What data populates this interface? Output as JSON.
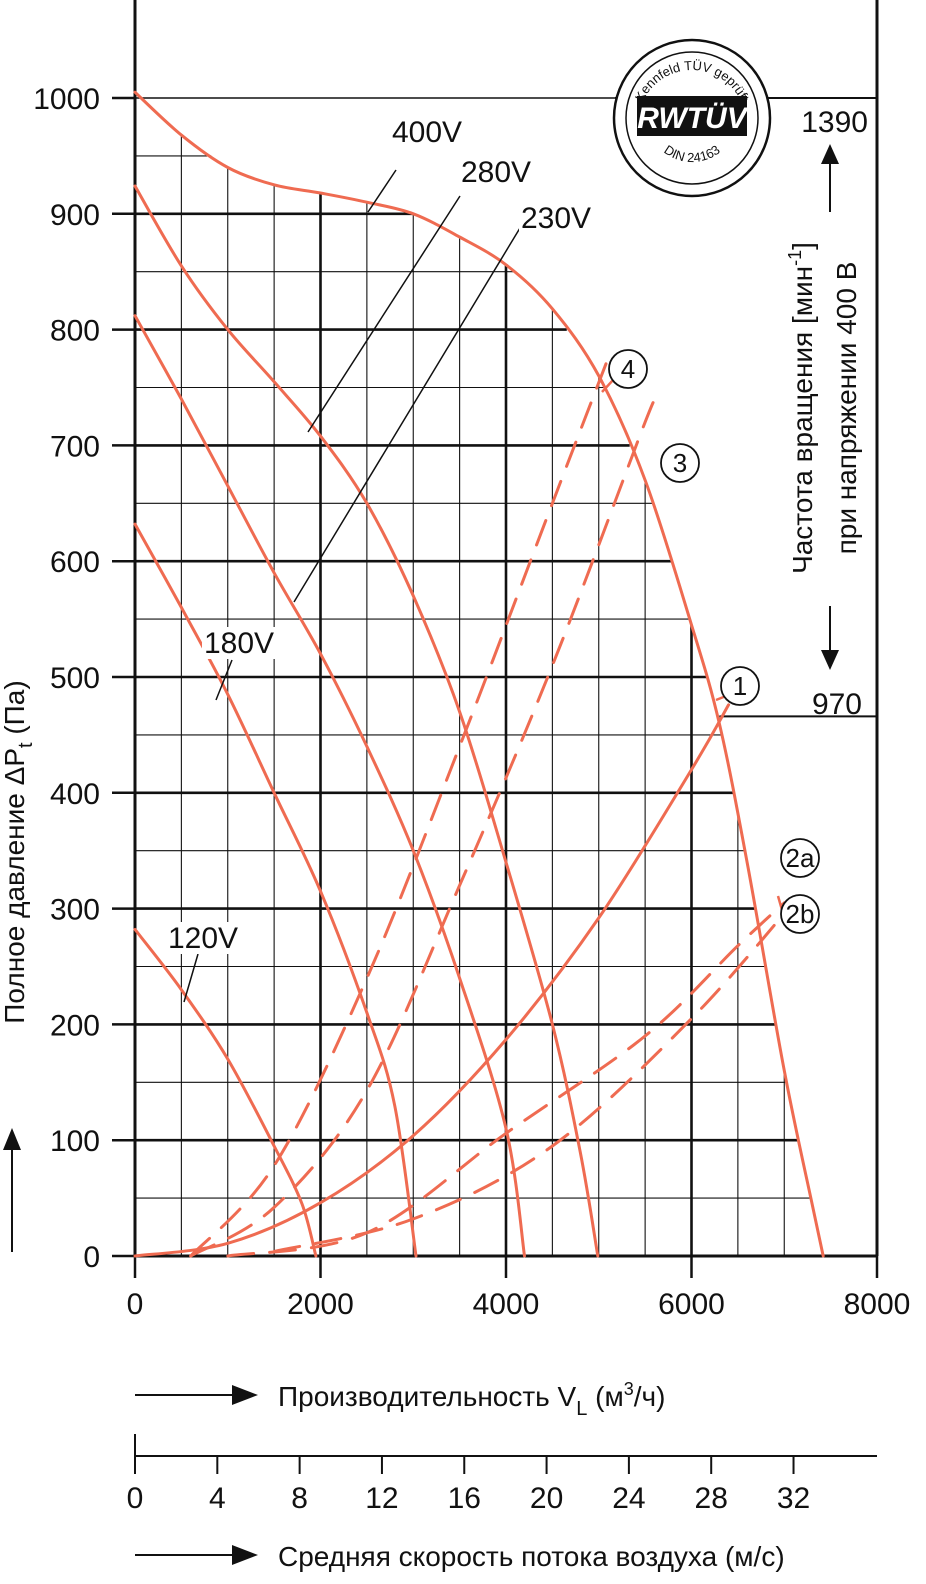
{
  "chart_data": {
    "type": "line",
    "title": "",
    "xlabel": "Производительность V",
    "xlabel_sub": "L",
    "xlabel_unit_pre": " (м",
    "xlabel_unit_sup": "3",
    "xlabel_unit_post": "/ч)",
    "ylabel": "Полное давление ΔP",
    "ylabel_sub": "t",
    "ylabel_unit": " (Па)",
    "velocity_label": "Средняя скорость потока воздуха (м/с)",
    "xlim": [
      0,
      8000
    ],
    "ylim": [
      0,
      1000
    ],
    "grid": true,
    "x_ticks": [
      "0",
      "2000",
      "4000",
      "6000",
      "8000"
    ],
    "y_ticks": [
      "0",
      "100",
      "200",
      "300",
      "400",
      "500",
      "600",
      "700",
      "800",
      "900",
      "1000"
    ],
    "velocity_ticks": [
      "0",
      "4",
      "8",
      "12",
      "16",
      "20",
      "24",
      "28",
      "32"
    ],
    "speed_axis": {
      "label_line1_pre": "Частота вращения [мин",
      "label_line1_sup": "-1",
      "label_line1_post": "]",
      "label_line2": "при напряжении 400 В",
      "top_value": "1390",
      "bottom_value": "970",
      "top_pressure": 1000,
      "bottom_pressure": 466
    },
    "badge": {
      "top_text": "Kennfeld TÜV geprüft",
      "brand": "RWTÜV",
      "bottom_text": "DIN 24163"
    },
    "color_curve": "#ef6b51",
    "color_grid": "#111111",
    "series": [
      {
        "name": "400V",
        "label": "400V",
        "style": "solid",
        "points": [
          [
            0,
            1005
          ],
          [
            500,
            968
          ],
          [
            1000,
            940
          ],
          [
            1500,
            925
          ],
          [
            2000,
            918
          ],
          [
            2500,
            910
          ],
          [
            3000,
            900
          ],
          [
            3500,
            880
          ],
          [
            4000,
            856
          ],
          [
            4500,
            818
          ],
          [
            5000,
            760
          ],
          [
            5500,
            670
          ],
          [
            6000,
            545
          ],
          [
            6300,
            460
          ],
          [
            6600,
            340
          ],
          [
            7000,
            160
          ],
          [
            7300,
            45
          ],
          [
            7420,
            0
          ]
        ]
      },
      {
        "name": "280V",
        "label": "280V",
        "style": "solid",
        "points": [
          [
            0,
            924
          ],
          [
            500,
            855
          ],
          [
            1000,
            800
          ],
          [
            1500,
            755
          ],
          [
            2000,
            708
          ],
          [
            2500,
            650
          ],
          [
            3000,
            570
          ],
          [
            3500,
            470
          ],
          [
            4000,
            340
          ],
          [
            4500,
            200
          ],
          [
            4800,
            90
          ],
          [
            4990,
            0
          ]
        ]
      },
      {
        "name": "230V",
        "label": "230V",
        "style": "solid",
        "points": [
          [
            0,
            812
          ],
          [
            500,
            740
          ],
          [
            1000,
            665
          ],
          [
            1500,
            590
          ],
          [
            2000,
            520
          ],
          [
            2500,
            440
          ],
          [
            3000,
            350
          ],
          [
            3500,
            240
          ],
          [
            4000,
            110
          ],
          [
            4200,
            0
          ]
        ]
      },
      {
        "name": "180V",
        "label": "180V",
        "style": "solid",
        "points": [
          [
            0,
            632
          ],
          [
            500,
            560
          ],
          [
            1000,
            485
          ],
          [
            1500,
            400
          ],
          [
            2000,
            315
          ],
          [
            2500,
            210
          ],
          [
            2800,
            130
          ],
          [
            3030,
            0
          ]
        ]
      },
      {
        "name": "120V",
        "label": "120V",
        "style": "solid",
        "points": [
          [
            0,
            282
          ],
          [
            500,
            230
          ],
          [
            1000,
            170
          ],
          [
            1500,
            95
          ],
          [
            1800,
            45
          ],
          [
            1950,
            0
          ]
        ]
      },
      {
        "name": "1",
        "label": "1",
        "style": "solid",
        "points": [
          [
            0,
            0
          ],
          [
            1000,
            11
          ],
          [
            2000,
            46
          ],
          [
            3000,
            104
          ],
          [
            4000,
            187
          ],
          [
            5000,
            292
          ],
          [
            6000,
            420
          ],
          [
            6400,
            476
          ]
        ]
      },
      {
        "name": "2a",
        "label": "2a",
        "style": "dashed",
        "points": [
          [
            1500,
            4
          ],
          [
            3000,
            32
          ],
          [
            4500,
            95
          ],
          [
            6000,
            205
          ],
          [
            7150,
            310
          ]
        ]
      },
      {
        "name": "2b",
        "label": "2b",
        "style": "dashed",
        "points": [
          [
            1000,
            0
          ],
          [
            2500,
            20
          ],
          [
            4000,
            106
          ],
          [
            5500,
            190
          ],
          [
            6500,
            268
          ],
          [
            7000,
            305
          ]
        ]
      },
      {
        "name": "3",
        "label": "3",
        "style": "dashed",
        "points": [
          [
            600,
            0
          ],
          [
            1500,
            42
          ],
          [
            2500,
            143
          ],
          [
            3500,
            320
          ],
          [
            4500,
            510
          ],
          [
            5500,
            720
          ],
          [
            5600,
            735
          ]
        ]
      },
      {
        "name": "4",
        "label": "4",
        "style": "dashed",
        "points": [
          [
            600,
            0
          ],
          [
            1500,
            78
          ],
          [
            2500,
            240
          ],
          [
            3500,
            440
          ],
          [
            4500,
            650
          ],
          [
            5100,
            775
          ]
        ]
      }
    ]
  }
}
